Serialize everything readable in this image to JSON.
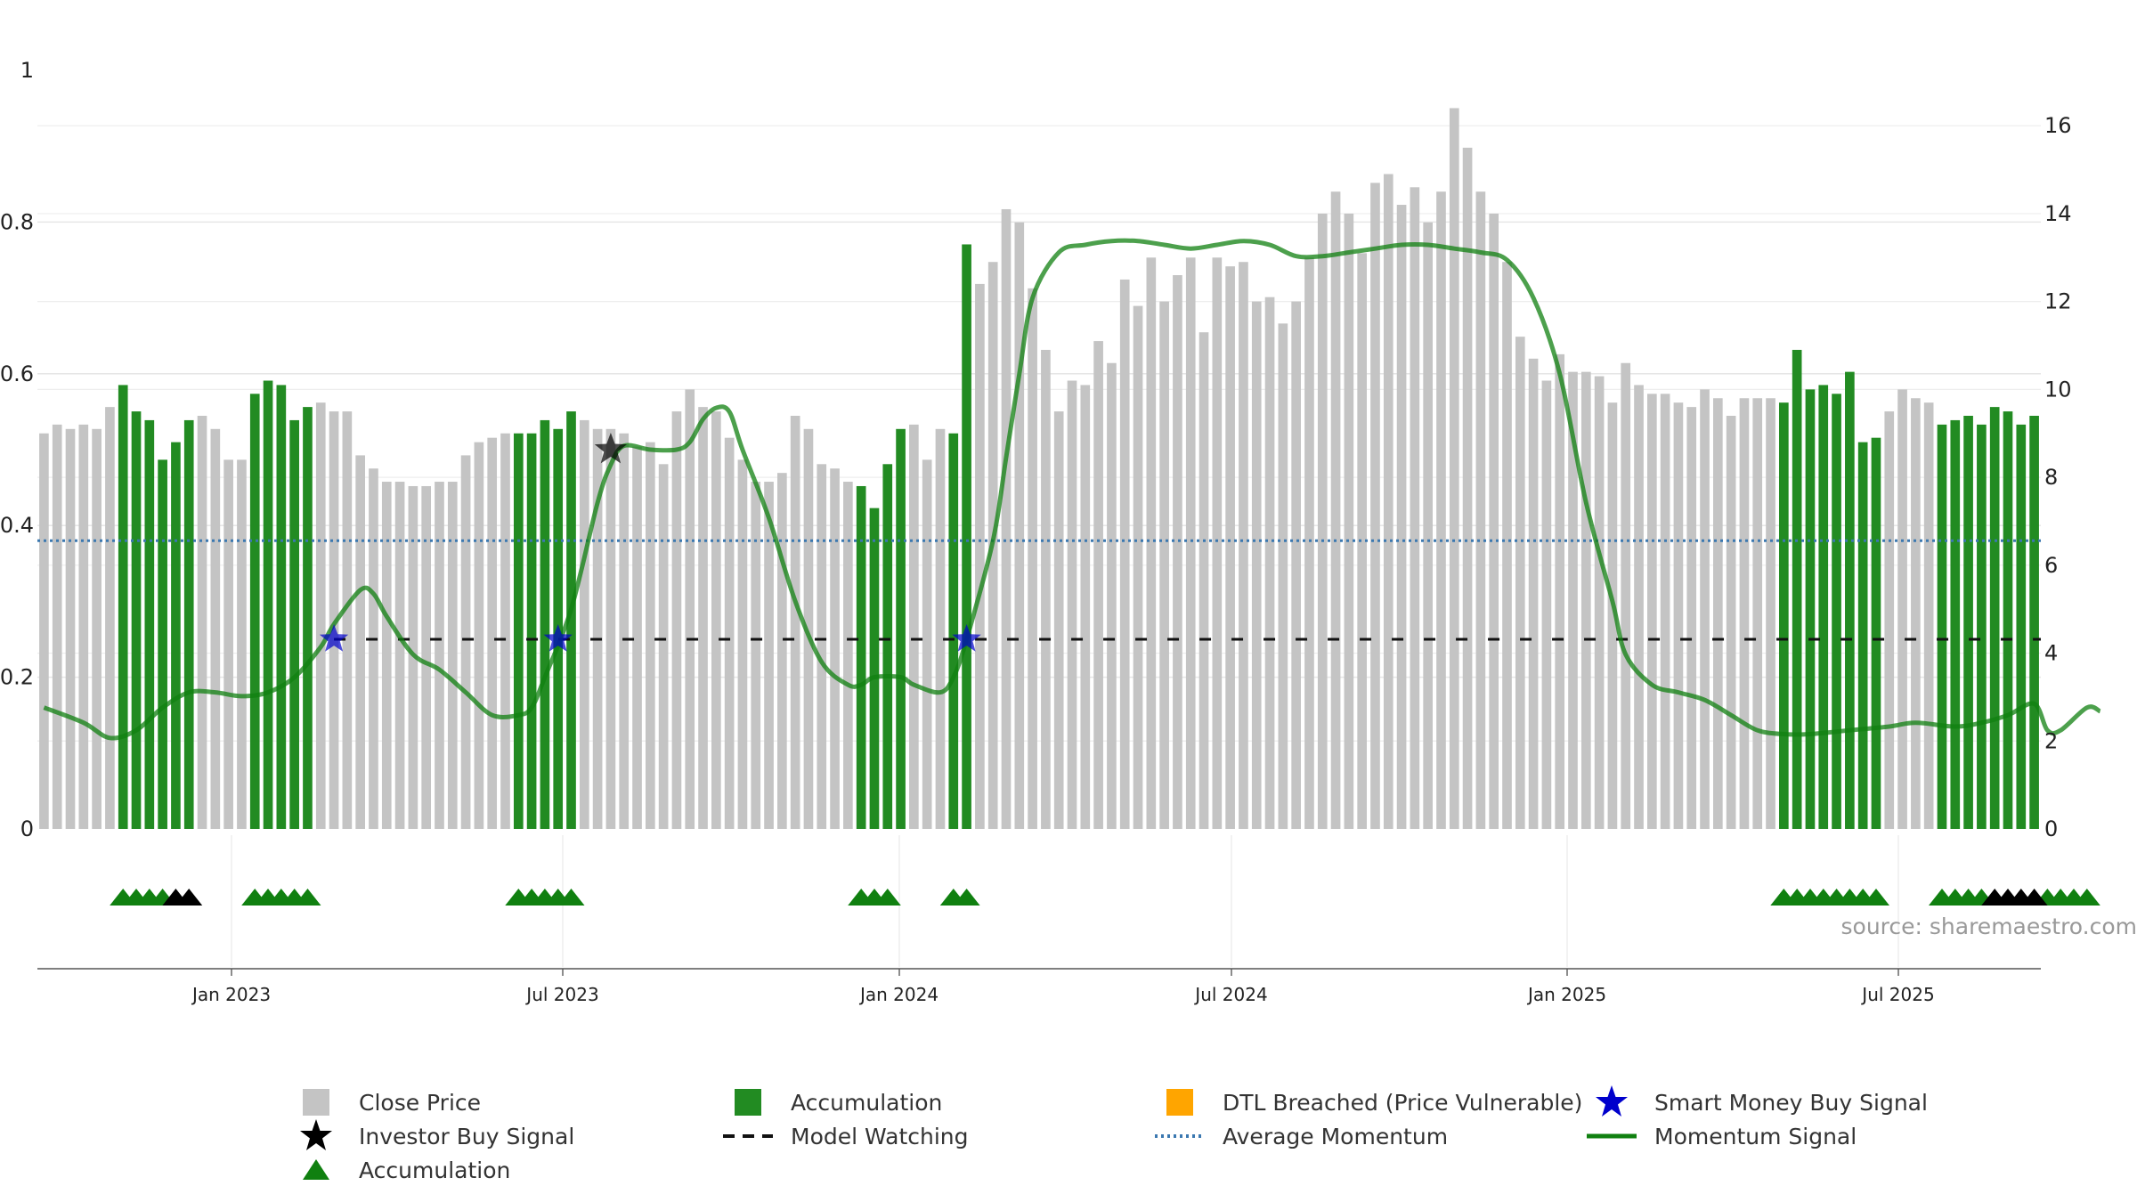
{
  "chart_data": {
    "type": "bar",
    "left_axis": {
      "ticks": [
        "0",
        "0.2",
        "0.4",
        "0.6",
        "0.8",
        "1"
      ],
      "range": [
        0,
        1
      ]
    },
    "right_axis": {
      "ticks": [
        "0",
        "2",
        "4",
        "6",
        "8",
        "10",
        "12",
        "14",
        "16"
      ],
      "range": [
        0,
        17.26
      ]
    },
    "x_axis": {
      "ticks": [
        "Jan 2023",
        "Jul 2023",
        "Jan 2024",
        "Jul 2024",
        "Jan 2025",
        "Jul 2025"
      ]
    },
    "average_momentum": 0.38,
    "model_watching_level": 0.25,
    "colors": {
      "close_price": "#c4c4c4",
      "accumulation": "#228b22",
      "dtl_breached": "#ffa500",
      "smart_money": "#0000cc",
      "investor": "#000000",
      "average_momentum": "#3b78b0",
      "momentum": "#108010"
    },
    "series": [
      {
        "name": "Close Price",
        "note_units": "right axis",
        "values": [
          9.0,
          9.2,
          9.1,
          9.2,
          9.1,
          9.6,
          10.1,
          9.5,
          9.3,
          8.4,
          8.8,
          9.3,
          9.4,
          9.1,
          8.4,
          8.4,
          9.9,
          10.2,
          10.1,
          9.3,
          9.6,
          9.7,
          9.5,
          9.5,
          8.5,
          8.2,
          7.9,
          7.9,
          7.8,
          7.8,
          7.9,
          7.9,
          8.5,
          8.8,
          8.9,
          9.0,
          9.0,
          9.0,
          9.3,
          9.1,
          9.5,
          9.3,
          9.1,
          9.1,
          9.0,
          8.7,
          8.8,
          8.3,
          9.5,
          10.0,
          9.6,
          9.5,
          8.9,
          8.4,
          7.9,
          7.9,
          8.1,
          9.4,
          9.1,
          8.3,
          8.2,
          7.9,
          7.8,
          7.3,
          8.3,
          9.1,
          9.2,
          8.4,
          9.1,
          9.0,
          13.3,
          12.4,
          12.9,
          14.1,
          13.8,
          12.3,
          10.9,
          9.5,
          10.2,
          10.1,
          11.1,
          10.6,
          12.5,
          11.9,
          13.0,
          12.0,
          12.6,
          13.0,
          11.3,
          13.0,
          12.8,
          12.9,
          12.0,
          12.1,
          11.5,
          12.0,
          13.0,
          14.0,
          14.5,
          14.0,
          13.1,
          14.7,
          14.9,
          14.2,
          14.6,
          13.8,
          14.5,
          16.4,
          15.5,
          14.5,
          14.0,
          12.9,
          11.2,
          10.7,
          10.2,
          10.8,
          10.4,
          10.4,
          10.3,
          9.7,
          10.6,
          10.1,
          9.9,
          9.9,
          9.7,
          9.6,
          10.0,
          9.8,
          9.4,
          9.8,
          9.8,
          9.8,
          9.7,
          10.9,
          10.0,
          10.1,
          9.9,
          10.4,
          8.8,
          8.9,
          9.5,
          10.0,
          9.8,
          9.7,
          9.2,
          9.3,
          9.4,
          9.2,
          9.6,
          9.5,
          9.2,
          9.4
        ],
        "accumulation_indices": [
          6,
          7,
          8,
          9,
          10,
          11,
          16,
          17,
          18,
          19,
          20,
          36,
          37,
          38,
          39,
          40,
          62,
          63,
          64,
          65,
          69,
          70,
          132,
          133,
          134,
          135,
          136,
          137,
          138,
          139,
          144,
          145,
          146,
          147,
          148,
          149,
          150,
          151,
          152,
          153,
          154,
          155
        ]
      },
      {
        "name": "Momentum Signal",
        "note_units": "left axis",
        "points": [
          [
            0,
            0.16
          ],
          [
            3,
            0.14
          ],
          [
            5,
            0.12
          ],
          [
            7,
            0.13
          ],
          [
            9,
            0.16
          ],
          [
            11,
            0.18
          ],
          [
            13,
            0.18
          ],
          [
            15,
            0.175
          ],
          [
            17,
            0.18
          ],
          [
            19,
            0.2
          ],
          [
            21,
            0.24
          ],
          [
            22,
            0.27
          ],
          [
            24,
            0.315
          ],
          [
            25,
            0.31
          ],
          [
            26,
            0.28
          ],
          [
            28,
            0.23
          ],
          [
            30,
            0.21
          ],
          [
            32,
            0.18
          ],
          [
            34,
            0.15
          ],
          [
            36,
            0.15
          ],
          [
            37,
            0.16
          ],
          [
            38,
            0.2
          ],
          [
            40,
            0.29
          ],
          [
            42,
            0.43
          ],
          [
            43,
            0.48
          ],
          [
            44,
            0.505
          ],
          [
            46,
            0.5
          ],
          [
            48,
            0.5
          ],
          [
            49,
            0.51
          ],
          [
            50,
            0.54
          ],
          [
            51,
            0.555
          ],
          [
            52,
            0.55
          ],
          [
            53,
            0.5
          ],
          [
            55,
            0.41
          ],
          [
            57,
            0.3
          ],
          [
            59,
            0.22
          ],
          [
            61,
            0.19
          ],
          [
            62,
            0.19
          ],
          [
            63,
            0.2
          ],
          [
            65,
            0.2
          ],
          [
            66,
            0.19
          ],
          [
            68,
            0.18
          ],
          [
            69,
            0.2
          ],
          [
            70,
            0.25
          ],
          [
            72,
            0.38
          ],
          [
            73,
            0.49
          ],
          [
            74,
            0.6
          ],
          [
            75,
            0.7
          ],
          [
            77,
            0.76
          ],
          [
            79,
            0.77
          ],
          [
            81,
            0.775
          ],
          [
            83,
            0.775
          ],
          [
            85,
            0.77
          ],
          [
            87,
            0.765
          ],
          [
            89,
            0.77
          ],
          [
            91,
            0.775
          ],
          [
            93,
            0.77
          ],
          [
            95,
            0.755
          ],
          [
            97,
            0.755
          ],
          [
            99,
            0.76
          ],
          [
            101,
            0.765
          ],
          [
            103,
            0.77
          ],
          [
            105,
            0.77
          ],
          [
            107,
            0.765
          ],
          [
            109,
            0.76
          ],
          [
            111,
            0.75
          ],
          [
            113,
            0.7
          ],
          [
            115,
            0.6
          ],
          [
            117,
            0.43
          ],
          [
            119,
            0.3
          ],
          [
            120,
            0.23
          ],
          [
            122,
            0.19
          ],
          [
            124,
            0.18
          ],
          [
            126,
            0.17
          ],
          [
            128,
            0.15
          ],
          [
            130,
            0.13
          ],
          [
            132,
            0.125
          ],
          [
            134,
            0.125
          ],
          [
            137,
            0.13
          ],
          [
            140,
            0.135
          ],
          [
            142,
            0.14
          ],
          [
            145,
            0.135
          ],
          [
            147,
            0.14
          ],
          [
            149,
            0.15
          ],
          [
            151,
            0.165
          ],
          [
            152,
            0.13
          ],
          [
            153,
            0.13
          ],
          [
            155,
            0.16
          ],
          [
            156,
            0.155
          ]
        ]
      }
    ],
    "markers": {
      "investor_buy_index": 43,
      "investor_buy_value": 0.5,
      "smart_money_indices": [
        22,
        39,
        70
      ],
      "smart_money_value": 0.25,
      "green_triangle_indices": [
        6,
        7,
        8,
        9,
        16,
        17,
        18,
        19,
        20,
        36,
        37,
        38,
        39,
        40,
        62,
        63,
        64,
        69,
        70,
        132,
        133,
        134,
        135,
        136,
        137,
        138,
        139,
        144,
        145,
        146,
        147,
        148,
        149,
        150,
        151,
        152,
        153,
        154,
        155
      ],
      "black_triangle_indices": [
        10,
        11,
        148,
        149,
        150,
        151
      ]
    },
    "legend": [
      "Close Price",
      "Accumulation",
      "DTL Breached (Price Vulnerable)",
      "Smart Money Buy Signal",
      "Investor Buy Signal",
      "Model Watching",
      "Average Momentum",
      "Momentum Signal",
      "Accumulation"
    ]
  },
  "watermark": "source: sharemaestro.com"
}
